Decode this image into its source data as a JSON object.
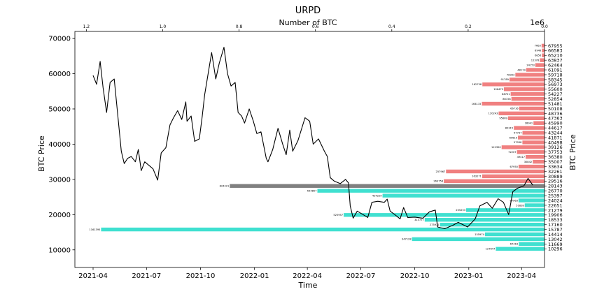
{
  "chart_data": {
    "type": "line",
    "title": "URPD",
    "xlabel": "Time",
    "ylabel": "BTC Price",
    "ylabel_right": "BTC Price",
    "top_xlabel": "Number of BTC",
    "top_offset_text": "1e6",
    "x_ticks": [
      "2021-04",
      "2021-07",
      "2021-10",
      "2022-01",
      "2022-04",
      "2022-07",
      "2022-10",
      "2023-01",
      "2023-04"
    ],
    "x_range": [
      "2021-03-01",
      "2023-05-10"
    ],
    "y_ticks": [
      10000,
      20000,
      30000,
      40000,
      50000,
      60000,
      70000
    ],
    "y_range": [
      5000,
      72000
    ],
    "top_ticks": [
      1.2,
      1.0,
      0.8,
      0.6,
      0.4,
      0.2,
      0.0
    ],
    "top_range": [
      1.23,
      0.0
    ],
    "price_series": {
      "name": "",
      "points": [
        [
          "2021-04-01",
          59500
        ],
        [
          "2021-04-07",
          57000
        ],
        [
          "2021-04-13",
          63500
        ],
        [
          "2021-04-18",
          56000
        ],
        [
          "2021-04-24",
          49000
        ],
        [
          "2021-04-30",
          57500
        ],
        [
          "2021-05-07",
          58500
        ],
        [
          "2021-05-12",
          50000
        ],
        [
          "2021-05-19",
          38000
        ],
        [
          "2021-05-24",
          34500
        ],
        [
          "2021-05-30",
          36000
        ],
        [
          "2021-06-05",
          36500
        ],
        [
          "2021-06-12",
          35000
        ],
        [
          "2021-06-17",
          38500
        ],
        [
          "2021-06-22",
          32500
        ],
        [
          "2021-06-28",
          35000
        ],
        [
          "2021-07-05",
          34000
        ],
        [
          "2021-07-12",
          33000
        ],
        [
          "2021-07-20",
          29800
        ],
        [
          "2021-07-26",
          37500
        ],
        [
          "2021-08-03",
          39000
        ],
        [
          "2021-08-10",
          45500
        ],
        [
          "2021-08-16",
          47500
        ],
        [
          "2021-08-23",
          49500
        ],
        [
          "2021-08-30",
          47000
        ],
        [
          "2021-09-06",
          52000
        ],
        [
          "2021-09-08",
          46500
        ],
        [
          "2021-09-15",
          48000
        ],
        [
          "2021-09-21",
          40800
        ],
        [
          "2021-09-29",
          41500
        ],
        [
          "2021-10-04",
          48000
        ],
        [
          "2021-10-08",
          54000
        ],
        [
          "2021-10-15",
          61000
        ],
        [
          "2021-10-20",
          66000
        ],
        [
          "2021-10-27",
          58500
        ],
        [
          "2021-11-02",
          63000
        ],
        [
          "2021-11-10",
          67500
        ],
        [
          "2021-11-16",
          60000
        ],
        [
          "2021-11-22",
          56500
        ],
        [
          "2021-11-29",
          57500
        ],
        [
          "2021-12-04",
          49000
        ],
        [
          "2021-12-10",
          48000
        ],
        [
          "2021-12-15",
          46000
        ],
        [
          "2021-12-23",
          50000
        ],
        [
          "2021-12-30",
          46500
        ],
        [
          "2022-01-05",
          43000
        ],
        [
          "2022-01-12",
          43500
        ],
        [
          "2022-01-21",
          36000
        ],
        [
          "2022-01-24",
          35000
        ],
        [
          "2022-02-01",
          38500
        ],
        [
          "2022-02-10",
          44500
        ],
        [
          "2022-02-18",
          40000
        ],
        [
          "2022-02-24",
          37000
        ],
        [
          "2022-03-02",
          44000
        ],
        [
          "2022-03-07",
          38000
        ],
        [
          "2022-03-16",
          41000
        ],
        [
          "2022-03-28",
          47500
        ],
        [
          "2022-04-05",
          46500
        ],
        [
          "2022-04-11",
          40000
        ],
        [
          "2022-04-20",
          41500
        ],
        [
          "2022-04-30",
          38000
        ],
        [
          "2022-05-05",
          36500
        ],
        [
          "2022-05-10",
          30500
        ],
        [
          "2022-05-17",
          29500
        ],
        [
          "2022-05-27",
          28800
        ],
        [
          "2022-06-05",
          30000
        ],
        [
          "2022-06-10",
          29000
        ],
        [
          "2022-06-13",
          22500
        ],
        [
          "2022-06-18",
          19000
        ],
        [
          "2022-06-25",
          21000
        ],
        [
          "2022-07-05",
          20000
        ],
        [
          "2022-07-13",
          19200
        ],
        [
          "2022-07-20",
          23500
        ],
        [
          "2022-07-30",
          23800
        ],
        [
          "2022-08-10",
          23500
        ],
        [
          "2022-08-15",
          24400
        ],
        [
          "2022-08-20",
          21000
        ],
        [
          "2022-08-28",
          20000
        ],
        [
          "2022-09-06",
          18800
        ],
        [
          "2022-09-12",
          22000
        ],
        [
          "2022-09-19",
          19200
        ],
        [
          "2022-10-01",
          19300
        ],
        [
          "2022-10-15",
          19000
        ],
        [
          "2022-10-26",
          20800
        ],
        [
          "2022-11-05",
          21300
        ],
        [
          "2022-11-09",
          16500
        ],
        [
          "2022-11-21",
          16000
        ],
        [
          "2022-12-05",
          17000
        ],
        [
          "2022-12-14",
          17800
        ],
        [
          "2022-12-30",
          16500
        ],
        [
          "2023-01-12",
          18800
        ],
        [
          "2023-01-20",
          22500
        ],
        [
          "2023-02-01",
          23500
        ],
        [
          "2023-02-10",
          21800
        ],
        [
          "2023-02-20",
          24500
        ],
        [
          "2023-03-01",
          23500
        ],
        [
          "2023-03-10",
          20000
        ],
        [
          "2023-03-17",
          26500
        ],
        [
          "2023-03-25",
          27500
        ],
        [
          "2023-04-05",
          28200
        ],
        [
          "2023-04-12",
          30300
        ],
        [
          "2023-04-20",
          28400
        ]
      ]
    },
    "urpd_bars": {
      "note_units": "BTC",
      "levels": [
        {
          "price": 67955,
          "btc": 7663,
          "zone": "red"
        },
        {
          "price": 66583,
          "btc": 6946,
          "zone": "red"
        },
        {
          "price": 65210,
          "btc": 6856,
          "zone": "red"
        },
        {
          "price": 63837,
          "btc": 12378,
          "zone": "red"
        },
        {
          "price": 62464,
          "btc": 24153,
          "zone": "red"
        },
        {
          "price": 61091,
          "btc": 48119,
          "zone": "red"
        },
        {
          "price": 59718,
          "btc": 76393,
          "zone": "red"
        },
        {
          "price": 58345,
          "btc": 91789,
          "zone": "red"
        },
        {
          "price": 56973,
          "btc": 162758,
          "zone": "red"
        },
        {
          "price": 55600,
          "btc": 106479,
          "zone": "red"
        },
        {
          "price": 54227,
          "btc": 88701,
          "zone": "red"
        },
        {
          "price": 52854,
          "btc": 86728,
          "zone": "red"
        },
        {
          "price": 51481,
          "btc": 164115,
          "zone": "red"
        },
        {
          "price": 50108,
          "btc": 66716,
          "zone": "red"
        },
        {
          "price": 48736,
          "btc": 120243,
          "zone": "red"
        },
        {
          "price": 47363,
          "btc": 95669,
          "zone": "red"
        },
        {
          "price": 45990,
          "btc": 28941,
          "zone": "red"
        },
        {
          "price": 44617,
          "btc": 80315,
          "zone": "red"
        },
        {
          "price": 43244,
          "btc": 57737,
          "zone": "red"
        },
        {
          "price": 41871,
          "btc": 69610,
          "zone": "red"
        },
        {
          "price": 40498,
          "btc": 57938,
          "zone": "red"
        },
        {
          "price": 39126,
          "btc": 112350,
          "zone": "red"
        },
        {
          "price": 37753,
          "btc": 72207,
          "zone": "red"
        },
        {
          "price": 36380,
          "btc": 49417,
          "zone": "red"
        },
        {
          "price": 35007,
          "btc": 30842,
          "zone": "red"
        },
        {
          "price": 33634,
          "btc": 67950,
          "zone": "red"
        },
        {
          "price": 32261,
          "btc": 257967,
          "zone": "red"
        },
        {
          "price": 30889,
          "btc": 163271,
          "zone": "red"
        },
        {
          "price": 29516,
          "btc": 263758,
          "zone": "red"
        },
        {
          "price": 28143,
          "btc": 824321,
          "zone": "gray"
        },
        {
          "price": 26770,
          "btc": 594857,
          "zone": "cyan"
        },
        {
          "price": 25397,
          "btc": 424229,
          "zone": "cyan"
        },
        {
          "price": 24024,
          "btc": 67963,
          "zone": "cyan"
        },
        {
          "price": 22651,
          "btc": 51828,
          "zone": "cyan"
        },
        {
          "price": 21279,
          "btc": 205253,
          "zone": "cyan"
        },
        {
          "price": 19906,
          "btc": 525957,
          "zone": "cyan"
        },
        {
          "price": 18533,
          "btc": 313777,
          "zone": "cyan"
        },
        {
          "price": 17160,
          "btc": 273911,
          "zone": "cyan"
        },
        {
          "price": 15787,
          "btc": 1161395,
          "zone": "cyan"
        },
        {
          "price": 14414,
          "btc": 155974,
          "zone": "cyan"
        },
        {
          "price": 13042,
          "btc": 347128,
          "zone": "cyan"
        },
        {
          "price": 11669,
          "btc": 67416,
          "zone": "cyan"
        },
        {
          "price": 10296,
          "btc": 127647,
          "zone": "cyan"
        }
      ],
      "right_tick_labels": [
        "67955",
        "66583",
        "65210",
        "63837",
        "62464",
        "61091",
        "59718",
        "58345",
        "56973",
        "55600",
        "54227",
        "52854",
        "51481",
        "50108",
        "48736",
        "47363",
        "45990",
        "44617",
        "43244",
        "41871",
        "40498",
        "39126",
        "37753",
        "36380",
        "35007",
        "33634",
        "32261",
        "30889",
        "29516",
        "28143",
        "26770",
        "25397",
        "24024",
        "22651",
        "21279",
        "19906",
        "18533",
        "17160",
        "15787",
        "14414",
        "13042",
        "11669",
        "10296"
      ],
      "colors": {
        "red": "#f08080",
        "gray": "#808080",
        "cyan": "#40e0d0",
        "line": "#000000"
      }
    }
  }
}
